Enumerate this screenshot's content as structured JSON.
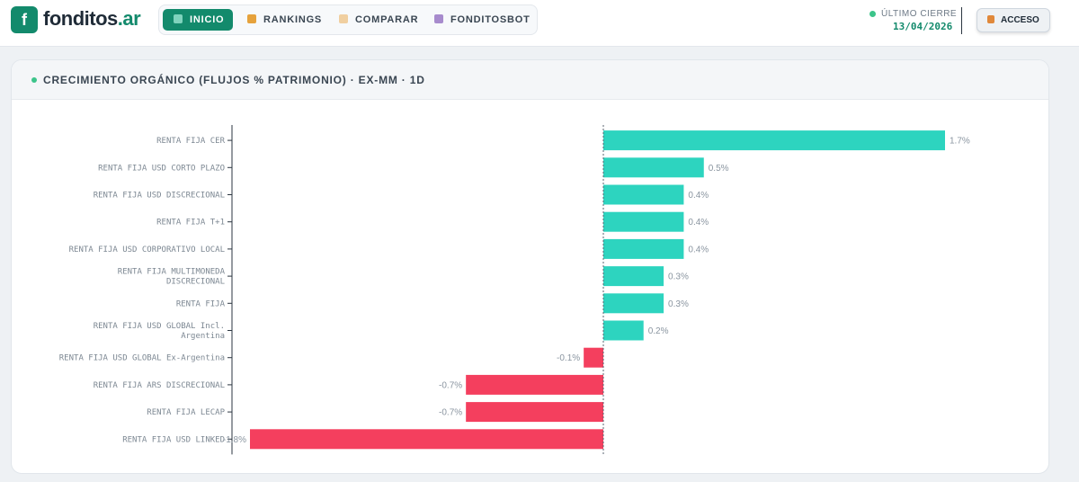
{
  "header": {
    "logo_letter": "f",
    "logo_main": "fonditos",
    "logo_accent": ".ar",
    "nav": [
      {
        "label": "INICIO",
        "active": true
      },
      {
        "label": "RANKINGS",
        "active": false
      },
      {
        "label": "COMPARAR",
        "active": false
      },
      {
        "label": "FONDITOSBOT",
        "active": false
      }
    ],
    "ultimo_cierre_label": "ÚLTIMO CIERRE",
    "ultimo_cierre_date": "13/04/2026",
    "acceso_label": "ACCESO"
  },
  "colors": {
    "brand": "#138a6c",
    "positive": "#2dd4bf",
    "negative": "#f43f5e"
  },
  "chart_data": {
    "type": "bar",
    "orientation": "horizontal",
    "title": "CRECIMIENTO ORGÁNICO (FLUJOS % PATRIMONIO) · EX-MM · 1D",
    "xlim": [
      -1.8,
      1.7
    ],
    "categories": [
      "RENTA FIJA CER",
      "RENTA FIJA USD CORTO PLAZO",
      "RENTA FIJA USD DISCRECIONAL",
      "RENTA FIJA T+1",
      "RENTA FIJA USD CORPORATIVO LOCAL",
      "RENTA FIJA MULTIMONEDA DISCRECIONAL",
      "RENTA FIJA",
      "RENTA FIJA USD GLOBAL Incl. Argentina",
      "RENTA FIJA USD GLOBAL Ex-Argentina",
      "RENTA FIJA ARS DISCRECIONAL",
      "RENTA FIJA LECAP",
      "RENTA FIJA USD LINKED"
    ],
    "category_lines": [
      [
        "RENTA FIJA CER"
      ],
      [
        "RENTA FIJA USD CORTO PLAZO"
      ],
      [
        "RENTA FIJA USD DISCRECIONAL"
      ],
      [
        "RENTA FIJA T+1"
      ],
      [
        "RENTA FIJA USD CORPORATIVO LOCAL"
      ],
      [
        "RENTA FIJA MULTIMONEDA",
        "DISCRECIONAL"
      ],
      [
        "RENTA FIJA"
      ],
      [
        "RENTA FIJA USD GLOBAL Incl.",
        "Argentina"
      ],
      [
        "RENTA FIJA USD GLOBAL Ex-Argentina"
      ],
      [
        "RENTA FIJA ARS DISCRECIONAL"
      ],
      [
        "RENTA FIJA LECAP"
      ],
      [
        "RENTA FIJA USD LINKED"
      ]
    ],
    "values": [
      1.7,
      0.5,
      0.4,
      0.4,
      0.4,
      0.3,
      0.3,
      0.2,
      -0.1,
      -0.7,
      -0.7,
      -1.8
    ],
    "value_labels": [
      "1.7%",
      "0.5%",
      "0.4%",
      "0.4%",
      "0.4%",
      "0.3%",
      "0.3%",
      "0.2%",
      "-0.1%",
      "-0.7%",
      "-0.7%",
      "-1.8%"
    ]
  }
}
